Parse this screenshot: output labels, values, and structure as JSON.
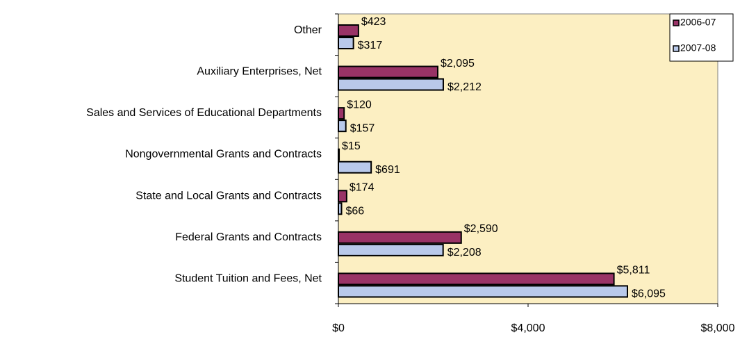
{
  "chart_data": {
    "type": "bar",
    "orientation": "horizontal",
    "categories": [
      "Other",
      "Auxiliary Enterprises, Net",
      "Sales and Services of Educational Departments",
      "Nongovernmental Grants and Contracts",
      "State and Local Grants and Contracts",
      "Federal Grants and Contracts",
      "Student Tuition and Fees, Net"
    ],
    "series": [
      {
        "name": "2006-07",
        "color": "#993366",
        "values": [
          423,
          2095,
          120,
          15,
          174,
          2590,
          5811
        ],
        "value_labels": [
          "$423",
          "$2,095",
          "$120",
          "$15",
          "$174",
          "$2,590",
          "$5,811"
        ]
      },
      {
        "name": "2007-08",
        "color": "#b9c9ea",
        "values": [
          317,
          2212,
          157,
          691,
          66,
          2208,
          6095
        ],
        "value_labels": [
          "$317",
          "$2,212",
          "$157",
          "$691",
          "$66",
          "$2,208",
          "$6,095"
        ]
      }
    ],
    "xlim": [
      0,
      8000
    ],
    "xticks": [
      {
        "value": 0,
        "label": "$0"
      },
      {
        "value": 4000,
        "label": "$4,000"
      },
      {
        "value": 8000,
        "label": "$8,000"
      }
    ],
    "plot_background": "#fcefc2",
    "legend": "top-right"
  }
}
